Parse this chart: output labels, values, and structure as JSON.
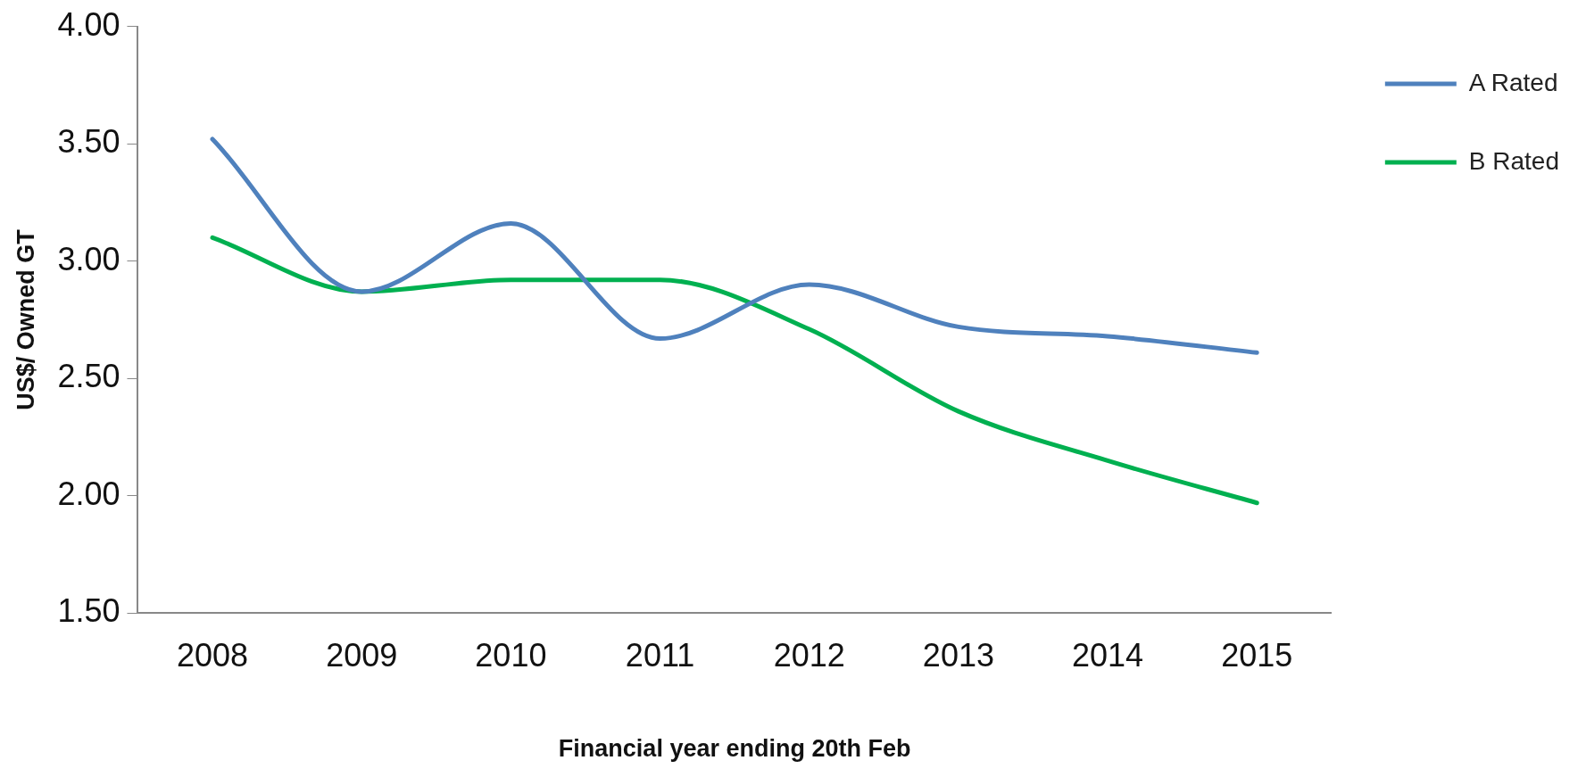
{
  "chart_data": {
    "type": "line",
    "xlabel": "Financial year ending 20th Feb",
    "ylabel": "US$/ Owned GT",
    "categories": [
      "2008",
      "2009",
      "2010",
      "2011",
      "2012",
      "2013",
      "2014",
      "2015"
    ],
    "series": [
      {
        "name": "A Rated",
        "color": "#4f81bd",
        "values": [
          3.52,
          2.87,
          3.16,
          2.67,
          2.9,
          2.72,
          2.68,
          2.61
        ]
      },
      {
        "name": "B Rated",
        "color": "#00b050",
        "values": [
          3.1,
          2.87,
          2.92,
          2.92,
          2.71,
          2.36,
          2.15,
          1.97
        ]
      }
    ],
    "ylim": [
      1.5,
      4
    ],
    "yticks": [
      {
        "value": 1.5,
        "label": "1.50"
      },
      {
        "value": 2,
        "label": "2.00"
      },
      {
        "value": 2.5,
        "label": "2.50"
      },
      {
        "value": 3,
        "label": "3.00"
      },
      {
        "value": 3.5,
        "label": "3.50"
      },
      {
        "value": 4,
        "label": "4.00"
      }
    ],
    "grid": false,
    "legend": "top right",
    "marker": "none",
    "line_style": "solid"
  }
}
